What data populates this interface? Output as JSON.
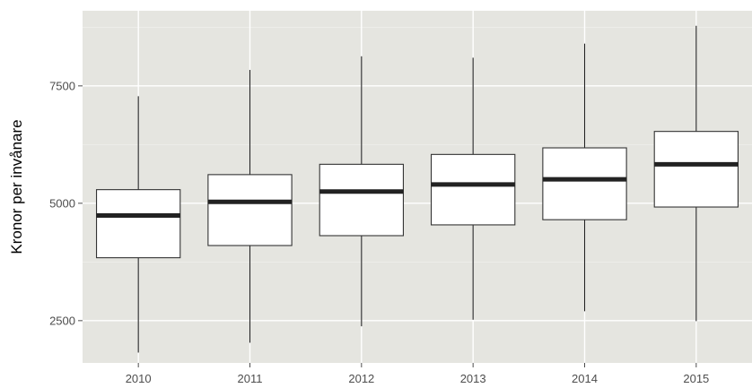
{
  "chart_data": {
    "type": "box",
    "title": "",
    "xlabel": "",
    "ylabel": "Kronor per invånare",
    "categories": [
      "2010",
      "2011",
      "2012",
      "2013",
      "2014",
      "2015"
    ],
    "ylim": [
      1600,
      9100
    ],
    "yticks": [
      2500,
      5000,
      7500
    ],
    "ytick_labels": [
      "2500",
      "5000",
      "7500"
    ],
    "boxes": [
      {
        "category": "2010",
        "whisker_low": 1820,
        "q1": 3840,
        "median": 4740,
        "q3": 5290,
        "whisker_high": 7280
      },
      {
        "category": "2011",
        "whisker_low": 2030,
        "q1": 4100,
        "median": 5030,
        "q3": 5610,
        "whisker_high": 7840
      },
      {
        "category": "2012",
        "whisker_low": 2380,
        "q1": 4310,
        "median": 5250,
        "q3": 5830,
        "whisker_high": 8130
      },
      {
        "category": "2013",
        "whisker_low": 2520,
        "q1": 4540,
        "median": 5400,
        "q3": 6040,
        "whisker_high": 8100
      },
      {
        "category": "2014",
        "whisker_low": 2700,
        "q1": 4650,
        "median": 5510,
        "q3": 6180,
        "whisker_high": 8400
      },
      {
        "category": "2015",
        "whisker_low": 2490,
        "q1": 4920,
        "median": 5830,
        "q3": 6530,
        "whisker_high": 8780
      }
    ],
    "grid": true,
    "legend": "none",
    "colors": {
      "panel_background": "#e5e5e0",
      "grid_major": "#ffffff",
      "grid_minor": "#f0f0ec",
      "box_fill": "#ffffff",
      "box_stroke": "#333333",
      "median_line": "#222222",
      "whisker": "#222222"
    }
  }
}
